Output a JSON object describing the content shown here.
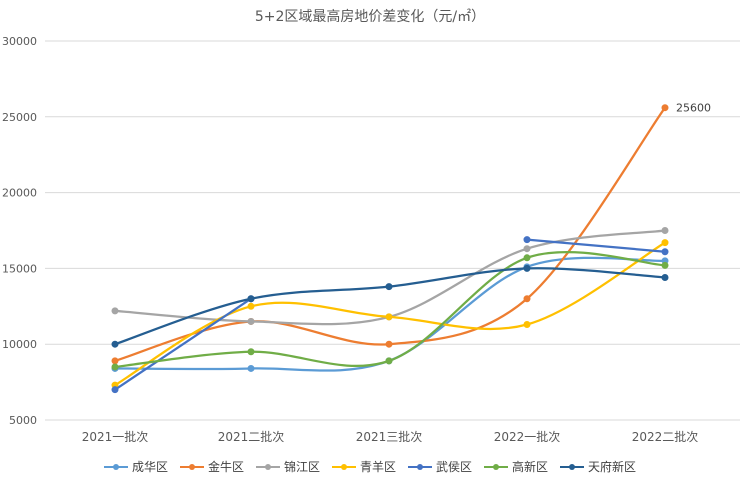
{
  "chart_data": {
    "type": "line",
    "title": "5+2区域最高房地价差变化（元/㎡）",
    "categories": [
      "2021一批次",
      "2021二批次",
      "2021三批次",
      "2022一批次",
      "2022二批次"
    ],
    "ylim": [
      5000,
      30000
    ],
    "yticks": [
      "5000",
      "10000",
      "15000",
      "20000",
      "25000",
      "30000"
    ],
    "grid": true,
    "smooth": true,
    "legend_position": "bottom",
    "series": [
      {
        "name": "成华区",
        "color": "#5B9BD5",
        "values": [
          8400,
          8400,
          8900,
          15100,
          15500
        ]
      },
      {
        "name": "金牛区",
        "color": "#ED7D31",
        "values": [
          8900,
          11500,
          10000,
          13000,
          25600
        ]
      },
      {
        "name": "锦江区",
        "color": "#A5A5A5",
        "values": [
          12200,
          11500,
          11800,
          16300,
          17500
        ]
      },
      {
        "name": "青羊区",
        "color": "#FFC000",
        "values": [
          7300,
          12500,
          11800,
          11300,
          16700
        ]
      },
      {
        "name": "武侯区",
        "color": "#4472C4",
        "values": [
          7000,
          13000,
          null,
          16900,
          16100
        ]
      },
      {
        "name": "高新区",
        "color": "#70AD47",
        "values": [
          8500,
          9500,
          8900,
          15700,
          15200
        ]
      },
      {
        "name": "天府新区",
        "color": "#255E91",
        "values": [
          10000,
          13000,
          13800,
          15000,
          14400
        ]
      }
    ],
    "annotations": [
      {
        "series": "金牛区",
        "category": "2022二批次",
        "text": "25600"
      }
    ]
  }
}
